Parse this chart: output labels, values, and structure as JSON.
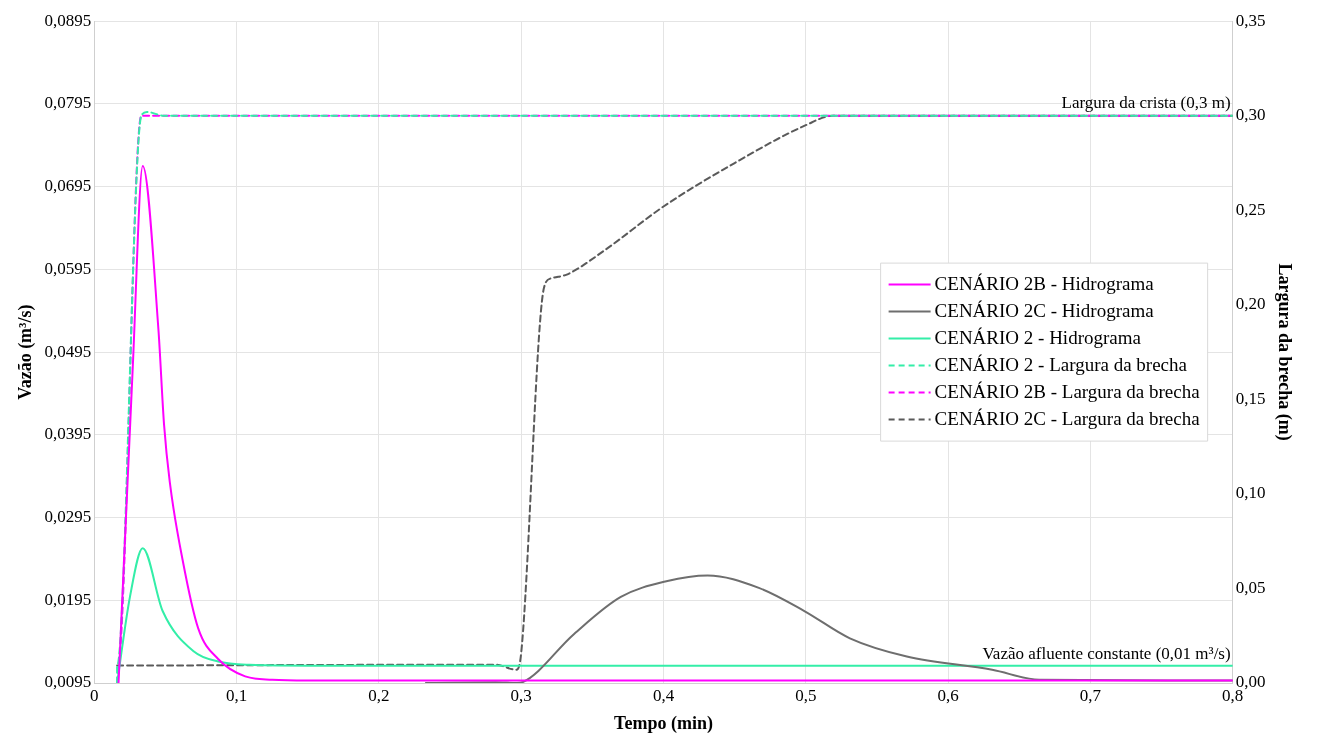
{
  "chart_data": {
    "type": "line",
    "xlabel": "Tempo (min)",
    "ylabel": "Vazão (m³/s)",
    "y2label": "Largura da brecha (m)",
    "xlim": [
      0,
      0.8
    ],
    "xticks": [
      0,
      {
        "value": 0.1,
        "label": "0,1"
      },
      {
        "value": 0.2,
        "label": "0,2"
      },
      {
        "value": 0.3,
        "label": "0,3"
      },
      {
        "value": 0.4,
        "label": "0,4"
      },
      {
        "value": 0.5,
        "label": "0,5"
      },
      {
        "value": 0.6,
        "label": "0,6"
      },
      {
        "value": 0.7,
        "label": "0,7"
      },
      {
        "value": 0.8,
        "label": "0,8"
      }
    ],
    "ylim": [
      0.0095,
      0.0895
    ],
    "yticks": [
      {
        "value": 0.0095,
        "label": "0,0095"
      },
      {
        "value": 0.0195,
        "label": "0,0195"
      },
      {
        "value": 0.0295,
        "label": "0,0295"
      },
      {
        "value": 0.0395,
        "label": "0,0395"
      },
      {
        "value": 0.0495,
        "label": "0,0495"
      },
      {
        "value": 0.0595,
        "label": "0,0595"
      },
      {
        "value": 0.0695,
        "label": "0,0695"
      },
      {
        "value": 0.0795,
        "label": "0,0795"
      },
      {
        "value": 0.0895,
        "label": "0,0895"
      }
    ],
    "y2lim": [
      0,
      0.35
    ],
    "y2ticks": [
      {
        "value": 0,
        "label": "0,00"
      },
      {
        "value": 0.05,
        "label": "0,05"
      },
      {
        "value": 0.1,
        "label": "0,10"
      },
      {
        "value": 0.15,
        "label": "0,15"
      },
      {
        "value": 0.2,
        "label": "0,20"
      },
      {
        "value": 0.25,
        "label": "0,25"
      },
      {
        "value": 0.3,
        "label": "0,30"
      },
      {
        "value": 0.35,
        "label": "0,35"
      }
    ],
    "grid": true,
    "legend": "right",
    "marker": "none",
    "annotations": [
      {
        "text": "Largura da crista (0,3 m)",
        "x": 0.8,
        "y": 0.0781
      },
      {
        "text": "Vazão afluente constante (0,01 m³/s)",
        "x": 0.8,
        "y": 0.0116
      }
    ],
    "series": [
      {
        "name": "CENÁRIO 2B - Hidrograma",
        "color": "#ff00ff",
        "line_style": "solid",
        "x": [
          0.017,
          0.027,
          0.034,
          0.045,
          0.049,
          0.053,
          0.062,
          0.073,
          0.087,
          0.106,
          0.125,
          0.15,
          0.3,
          0.5,
          0.8
        ],
        "values": [
          0.0095,
          0.0477,
          0.072,
          0.0523,
          0.0407,
          0.0338,
          0.0244,
          0.0161,
          0.0124,
          0.0103,
          0.0099,
          0.0098,
          0.0098,
          0.0098,
          0.0098
        ]
      },
      {
        "name": "CENÁRIO 2C - Hidrograma",
        "color": "#6e6e6e",
        "line_style": "solid",
        "x": [
          0.233,
          0.282,
          0.297,
          0.301,
          0.337,
          0.37,
          0.402,
          0.431,
          0.467,
          0.499,
          0.531,
          0.571,
          0.631,
          0.664,
          0.8
        ],
        "values": [
          0.0095,
          0.0096,
          0.0095,
          0.0096,
          0.0154,
          0.0199,
          0.0218,
          0.0225,
          0.021,
          0.0182,
          0.0149,
          0.0127,
          0.0111,
          0.0099,
          0.0098
        ]
      },
      {
        "name": "CENÁRIO 2 - Hidrograma",
        "color": "#33eea8",
        "line_style": "solid",
        "x": [
          0.016,
          0.025,
          0.034,
          0.048,
          0.07,
          0.087,
          0.109,
          0.15,
          0.8
        ],
        "values": [
          0.0095,
          0.0199,
          0.0258,
          0.0182,
          0.0133,
          0.0121,
          0.0117,
          0.0116,
          0.0116
        ]
      },
      {
        "name": "CENÁRIO 2 - Largura da brecha",
        "color": "#33eea8",
        "line_style": "dashed",
        "axis": "y2",
        "x": [
          0.016,
          0.016,
          0.033,
          0.037,
          0.049,
          0.8
        ],
        "values": [
          0,
          0.009,
          0.3,
          0.302,
          0.3,
          0.3
        ]
      },
      {
        "name": "CENÁRIO 2B - Largura da brecha",
        "color": "#ff00ff",
        "line_style": "dashed",
        "axis": "y2",
        "x": [
          0.0165,
          0.0165,
          0.033,
          0.8
        ],
        "values": [
          0,
          0.009,
          0.3,
          0.3
        ]
      },
      {
        "name": "CENÁRIO 2C - Largura da brecha",
        "color": "#5a5a5a",
        "line_style": "dashed",
        "axis": "y2",
        "x": [
          0.016,
          0.282,
          0.2966,
          0.3,
          0.316,
          0.321,
          0.332,
          0.358,
          0.4,
          0.45,
          0.5,
          0.519,
          0.8
        ],
        "values": [
          0.0092,
          0.0097,
          0.007,
          0.016,
          0.209,
          0.214,
          0.216,
          0.2285,
          0.252,
          0.275,
          0.295,
          0.3,
          0.3
        ]
      }
    ]
  }
}
